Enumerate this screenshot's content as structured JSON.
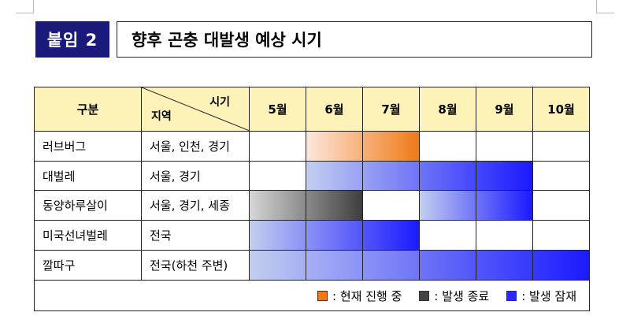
{
  "title": {
    "badge": "붙임 2",
    "text": "향후 곤충 대발생 예상 시기"
  },
  "table": {
    "header_category": "구분",
    "header_diag_top": "시기",
    "header_diag_bottom": "지역",
    "months": [
      "5월",
      "6월",
      "7월",
      "8월",
      "9월",
      "10월"
    ],
    "rows": [
      {
        "name": "러브버그",
        "region": "서울, 인천, 경기",
        "segments": [
          {
            "status": "current",
            "start_month": 6,
            "end_month": 7
          }
        ]
      },
      {
        "name": "대벌레",
        "region": "서울, 경기",
        "segments": [
          {
            "status": "potential",
            "start_month": 6,
            "end_month": 9
          }
        ]
      },
      {
        "name": "동양하루살이",
        "region": "서울, 경기, 세종",
        "segments": [
          {
            "status": "ended",
            "start_month": 5,
            "end_month": 6
          },
          {
            "status": "potential",
            "start_month": 8,
            "end_month": 9
          }
        ]
      },
      {
        "name": "미국선녀벌레",
        "region": "전국",
        "segments": [
          {
            "status": "potential",
            "start_month": 5,
            "end_month": 7
          }
        ]
      },
      {
        "name": "깔따구",
        "region": "전국(하천 주변)",
        "segments": [
          {
            "status": "potential",
            "start_month": 5,
            "end_month": 10
          }
        ]
      }
    ]
  },
  "legend": [
    {
      "label": ": 현재 진행 중",
      "color": "#f07a17",
      "status": "current"
    },
    {
      "label": ": 발생 종료",
      "color": "#444444",
      "status": "ended"
    },
    {
      "label": ": 발생 잠재",
      "color": "#2a2aff",
      "status": "potential"
    }
  ]
}
